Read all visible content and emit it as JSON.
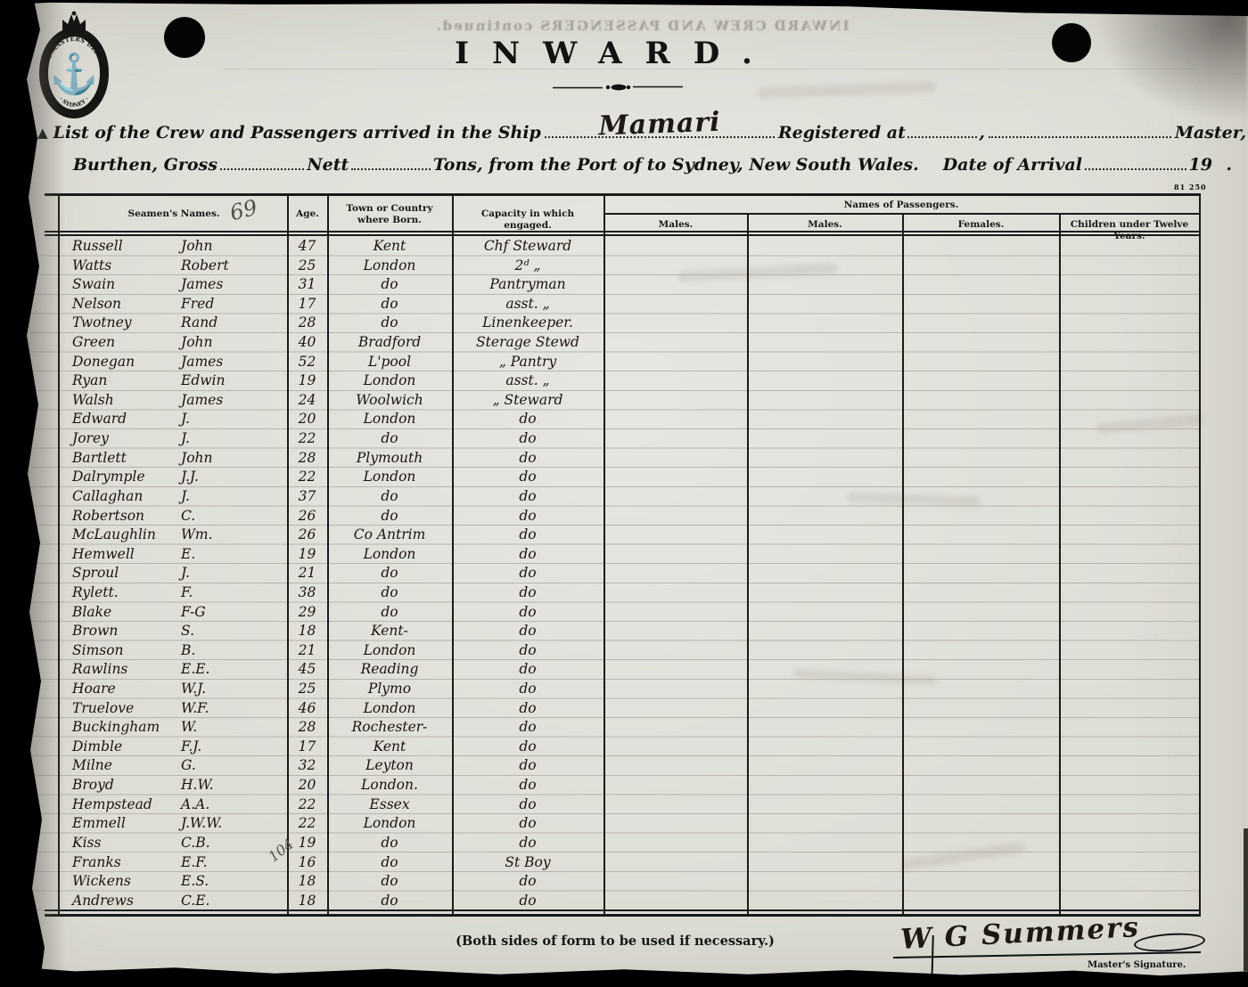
{
  "seal": {
    "text_arc": "SHIPPING MASTERS DEPARTMENT",
    "text_bottom": "· SYDNEY ·",
    "anchor_icon": "⚓"
  },
  "scan": {
    "bleedthrough_title": "INWARD CREW AND PASSENGERS continued."
  },
  "header": {
    "title": "INWARD."
  },
  "form": {
    "list_marker": "A",
    "line1_prefix": "List of the Crew and Passengers arrived in the Ship",
    "ship_name": "Mamari",
    "registered_at_label": "Registered at",
    "comma": ",",
    "master_label": "Master,",
    "burthen_label": "Burthen, Gross",
    "nett_label": "Nett",
    "tons_label": "Tons, from the Port of",
    "to_label": "to Sydney, New South Wales.",
    "date_of_arrival_label": "Date of Arrival",
    "year_prefix": "19",
    "period": ".",
    "form_number": "81 250"
  },
  "table": {
    "col_seamen": "Seamen's Names.",
    "col_age": "Age.",
    "col_born": "Town or Country where Born.",
    "col_capacity": "Capacity in which engaged.",
    "passengers_group": "Names of Passengers.",
    "col_males1": "Males.",
    "col_males2": "Males.",
    "col_females": "Females.",
    "col_children": "Children under Twelve Years.",
    "annotation_69": "69",
    "annotation_104": "104"
  },
  "rows": [
    {
      "surname": "Russell",
      "given": "John",
      "age": "47",
      "born": "Kent",
      "capacity": "Chf Steward"
    },
    {
      "surname": "Watts",
      "given": "Robert",
      "age": "25",
      "born": "London",
      "capacity": "2ᵈ  „"
    },
    {
      "surname": "Swain",
      "given": "James",
      "age": "31",
      "born": "do",
      "capacity": "Pantryman"
    },
    {
      "surname": "Nelson",
      "given": "Fred",
      "age": "17",
      "born": "do",
      "capacity": "asst. „"
    },
    {
      "surname": "Twotney",
      "given": "Rand",
      "age": "28",
      "born": "do",
      "capacity": "Linenkeeper."
    },
    {
      "surname": "Green",
      "given": "John",
      "age": "40",
      "born": "Bradford",
      "capacity": "Sterage Stewd"
    },
    {
      "surname": "Donegan",
      "given": "James",
      "age": "52",
      "born": "L'pool",
      "capacity": "„ Pantry"
    },
    {
      "surname": "Ryan",
      "given": "Edwin",
      "age": "19",
      "born": "London",
      "capacity": "asst. „"
    },
    {
      "surname": "Walsh",
      "given": "James",
      "age": "24",
      "born": "Woolwich",
      "capacity": "„ Steward"
    },
    {
      "surname": "Edward",
      "given": "J.",
      "age": "20",
      "born": "London",
      "capacity": "do"
    },
    {
      "surname": "Jorey",
      "given": "J.",
      "age": "22",
      "born": "do",
      "capacity": "do"
    },
    {
      "surname": "Bartlett",
      "given": "John",
      "age": "28",
      "born": "Plymouth",
      "capacity": "do"
    },
    {
      "surname": "Dalrymple",
      "given": "J.J.",
      "age": "22",
      "born": "London",
      "capacity": "do"
    },
    {
      "surname": "Callaghan",
      "given": "J.",
      "age": "37",
      "born": "do",
      "capacity": "do"
    },
    {
      "surname": "Robertson",
      "given": "C.",
      "age": "26",
      "born": "do",
      "capacity": "do"
    },
    {
      "surname": "McLaughlin",
      "given": "Wm.",
      "age": "26",
      "born": "Co Antrim",
      "capacity": "do"
    },
    {
      "surname": "Hemwell",
      "given": "E.",
      "age": "19",
      "born": "London",
      "capacity": "do"
    },
    {
      "surname": "Sproul",
      "given": "J.",
      "age": "21",
      "born": "do",
      "capacity": "do"
    },
    {
      "surname": "Rylett.",
      "given": "F.",
      "age": "38",
      "born": "do",
      "capacity": "do"
    },
    {
      "surname": "Blake",
      "given": "F-G",
      "age": "29",
      "born": "do",
      "capacity": "do"
    },
    {
      "surname": "Brown",
      "given": "S.",
      "age": "18",
      "born": "Kent-",
      "capacity": "do"
    },
    {
      "surname": "Simson",
      "given": "B.",
      "age": "21",
      "born": "London",
      "capacity": "do"
    },
    {
      "surname": "Rawlins",
      "given": "E.E.",
      "age": "45",
      "born": "Reading",
      "capacity": "do"
    },
    {
      "surname": "Hoare",
      "given": "W.J.",
      "age": "25",
      "born": "Plymo",
      "capacity": "do"
    },
    {
      "surname": "Truelove",
      "given": "W.F.",
      "age": "46",
      "born": "London",
      "capacity": "do"
    },
    {
      "surname": "Buckingham",
      "given": "W.",
      "age": "28",
      "born": "Rochester-",
      "capacity": "do"
    },
    {
      "surname": "Dimble",
      "given": "F.J.",
      "age": "17",
      "born": "Kent",
      "capacity": "do"
    },
    {
      "surname": "Milne",
      "given": "G.",
      "age": "32",
      "born": "Leyton",
      "capacity": "do"
    },
    {
      "surname": "Broyd",
      "given": "H.W.",
      "age": "20",
      "born": "London.",
      "capacity": "do"
    },
    {
      "surname": "Hempstead",
      "given": "A.A.",
      "age": "22",
      "born": "Essex",
      "capacity": "do"
    },
    {
      "surname": "Emmell",
      "given": "J.W.W.",
      "age": "22",
      "born": "London",
      "capacity": "do"
    },
    {
      "surname": "Kiss",
      "given": "C.B.",
      "age": "19",
      "born": "do",
      "capacity": "do"
    },
    {
      "surname": "Franks",
      "given": "E.F.",
      "age": "16",
      "born": "do",
      "capacity": "St Boy"
    },
    {
      "surname": "Wickens",
      "given": "E.S.",
      "age": "18",
      "born": "do",
      "capacity": "do"
    },
    {
      "surname": "Andrews",
      "given": "C.E.",
      "age": "18",
      "born": "do",
      "capacity": "do"
    }
  ],
  "footer": {
    "note": "(Both sides of form to be used if necessary.)",
    "signature": "W G Summers",
    "signature_label": "Master's Signature."
  }
}
